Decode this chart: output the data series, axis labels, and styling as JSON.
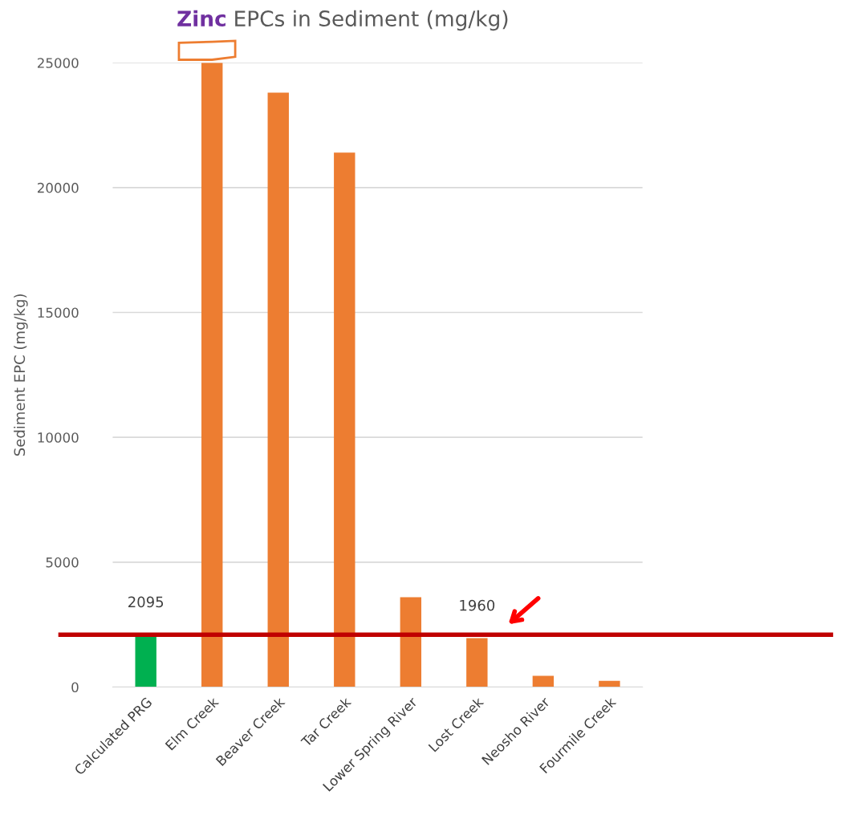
{
  "chart_data": {
    "type": "bar",
    "title": "Zinc EPCs in Sediment (mg/kg)",
    "ylabel": "Sediment EPC (mg/kg)",
    "categories": [
      "Calculated PRG",
      "Elm Creek",
      "Beaver Creek",
      "Tar Creek",
      "Lower Spring River",
      "Lost Creek",
      "Neosho River",
      "Fourmile Creek"
    ],
    "values": [
      2095,
      25000,
      23800,
      21400,
      3600,
      1960,
      450,
      250
    ],
    "colors": [
      "#00b050",
      "#ed7d31",
      "#ed7d31",
      "#ed7d31",
      "#ed7d31",
      "#ed7d31",
      "#ed7d31",
      "#ed7d31"
    ],
    "value_labels": [
      "2095",
      null,
      null,
      null,
      null,
      "1960",
      null,
      null
    ],
    "ref_lines": [
      {
        "axis": "y",
        "value": 2095,
        "color": "#c00000"
      }
    ],
    "ylim": [
      0,
      25000
    ],
    "yticks": [
      0,
      5000,
      10000,
      15000,
      20000,
      25000
    ],
    "grid": "y",
    "legend": false
  }
}
